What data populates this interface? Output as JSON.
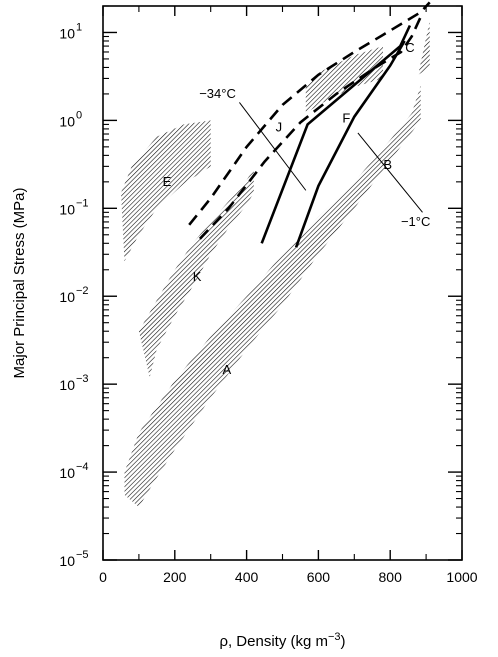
{
  "chart_data": {
    "type": "area",
    "title": "",
    "xlabel": "ρ, Density (kg m",
    "xlabel_sup": "−3",
    "xlabel_close": ")",
    "ylabel": "Major Principal Stress (MPa)",
    "x_scale": "linear",
    "y_scale": "log",
    "xlim": [
      0,
      1000
    ],
    "ylim": [
      1e-05,
      20
    ],
    "grid": false,
    "x_ticks": [
      {
        "value": 0,
        "label": "0"
      },
      {
        "value": 200,
        "label": "200"
      },
      {
        "value": 400,
        "label": "400"
      },
      {
        "value": 600,
        "label": "600"
      },
      {
        "value": 800,
        "label": "800"
      },
      {
        "value": 1000,
        "label": "1000"
      }
    ],
    "y_ticks": [
      {
        "value": 1e-05,
        "base": "10",
        "exp": "−5"
      },
      {
        "value": 0.0001,
        "base": "10",
        "exp": "−4"
      },
      {
        "value": 0.001,
        "base": "10",
        "exp": "−3"
      },
      {
        "value": 0.01,
        "base": "10",
        "exp": "−2"
      },
      {
        "value": 0.1,
        "base": "10",
        "exp": "−1"
      },
      {
        "value": 1,
        "base": "10",
        "exp": "0"
      },
      {
        "value": 10,
        "base": "10",
        "exp": "1"
      }
    ],
    "regions": [
      {
        "label": "A",
        "label_at": [
          345,
          0.0013
        ],
        "upper": [
          [
            60,
            0.0001
          ],
          [
            100,
            0.00028
          ],
          [
            200,
            0.0011
          ],
          [
            300,
            0.0035
          ],
          [
            400,
            0.01
          ],
          [
            500,
            0.03
          ],
          [
            600,
            0.08
          ],
          [
            700,
            0.2
          ],
          [
            800,
            0.6
          ],
          [
            860,
            1.2
          ],
          [
            885,
            2.5
          ]
        ],
        "lower": [
          [
            60,
            5.5e-05
          ],
          [
            100,
            4e-05
          ],
          [
            140,
            7.5e-05
          ],
          [
            200,
            0.00018
          ],
          [
            300,
            0.0007
          ],
          [
            400,
            0.0025
          ],
          [
            500,
            0.008
          ],
          [
            600,
            0.03
          ],
          [
            700,
            0.1
          ],
          [
            800,
            0.35
          ],
          [
            885,
            1.0
          ]
        ]
      },
      {
        "label": "K",
        "label_at": [
          262,
          0.015
        ],
        "upper": [
          [
            100,
            0.004
          ],
          [
            150,
            0.009
          ],
          [
            200,
            0.02
          ],
          [
            250,
            0.04
          ],
          [
            300,
            0.07
          ],
          [
            350,
            0.12
          ],
          [
            400,
            0.21
          ],
          [
            420,
            0.28
          ]
        ],
        "lower": [
          [
            130,
            0.0012
          ],
          [
            150,
            0.0025
          ],
          [
            200,
            0.006
          ],
          [
            250,
            0.013
          ],
          [
            300,
            0.03
          ],
          [
            350,
            0.06
          ],
          [
            400,
            0.11
          ],
          [
            420,
            0.15
          ]
        ]
      },
      {
        "label": "E",
        "label_at": [
          178,
          0.18
        ],
        "upper": [
          [
            50,
            0.15
          ],
          [
            80,
            0.3
          ],
          [
            150,
            0.65
          ],
          [
            225,
            0.9
          ],
          [
            300,
            1.0
          ]
        ],
        "lower": [
          [
            60,
            0.025
          ],
          [
            100,
            0.05
          ],
          [
            150,
            0.1
          ],
          [
            225,
            0.19
          ],
          [
            300,
            0.3
          ]
        ]
      },
      {
        "label": "",
        "label_at": [
          650,
          2.0
        ],
        "upper": [
          [
            565,
            2.4
          ],
          [
            600,
            3.5
          ],
          [
            700,
            5.5
          ],
          [
            780,
            7.0
          ]
        ],
        "lower": [
          [
            565,
            1.2
          ],
          [
            600,
            1.5
          ],
          [
            700,
            2.4
          ],
          [
            780,
            3.0
          ]
        ]
      },
      {
        "label": "",
        "label_at": [
          880,
          5.0
        ],
        "upper": [
          [
            878,
            3.3
          ],
          [
            910,
            13.5
          ]
        ],
        "lower": [
          [
            878,
            3.3
          ],
          [
            910,
            4.0
          ]
        ]
      }
    ],
    "solid_lines": [
      {
        "points": [
          [
            442,
            0.04
          ],
          [
            570,
            0.9
          ],
          [
            828,
            7.0
          ],
          [
            855,
            12.0
          ]
        ]
      },
      {
        "points": [
          [
            538,
            0.036
          ],
          [
            600,
            0.18
          ],
          [
            700,
            1.1
          ],
          [
            800,
            4.2
          ],
          [
            840,
            8.0
          ]
        ]
      }
    ],
    "dashed_lines": [
      {
        "points": [
          [
            240,
            0.065
          ],
          [
            300,
            0.13
          ],
          [
            400,
            0.5
          ],
          [
            500,
            1.5
          ],
          [
            600,
            3.3
          ],
          [
            700,
            6.0
          ],
          [
            800,
            10.5
          ],
          [
            885,
            17.0
          ],
          [
            910,
            22.0
          ]
        ]
      },
      {
        "points": [
          [
            270,
            0.045
          ],
          [
            350,
            0.1
          ],
          [
            450,
            0.34
          ],
          [
            550,
            0.95
          ],
          [
            650,
            2.0
          ],
          [
            750,
            3.8
          ],
          [
            830,
            6.0
          ],
          [
            860,
            9.0
          ],
          [
            888,
            16.0
          ]
        ]
      }
    ],
    "annotations": [
      {
        "text": "C",
        "at": [
          855,
          6.0
        ]
      },
      {
        "text": "J",
        "at": [
          490,
          0.75
        ]
      },
      {
        "text": "F",
        "at": [
          678,
          0.95
        ]
      },
      {
        "text": "B",
        "at": [
          793,
          0.28
        ]
      }
    ],
    "temperature_lines": [
      {
        "label": "−34°C",
        "from": [
          380,
          1.6
        ],
        "to": [
          565,
          0.16
        ],
        "label_at": [
          370,
          1.8
        ],
        "label_anchor": "end"
      },
      {
        "label": "−1°C",
        "from": [
          710,
          0.72
        ],
        "to": [
          890,
          0.09
        ],
        "label_at": [
          830,
          0.063
        ],
        "label_anchor": "start"
      }
    ]
  }
}
